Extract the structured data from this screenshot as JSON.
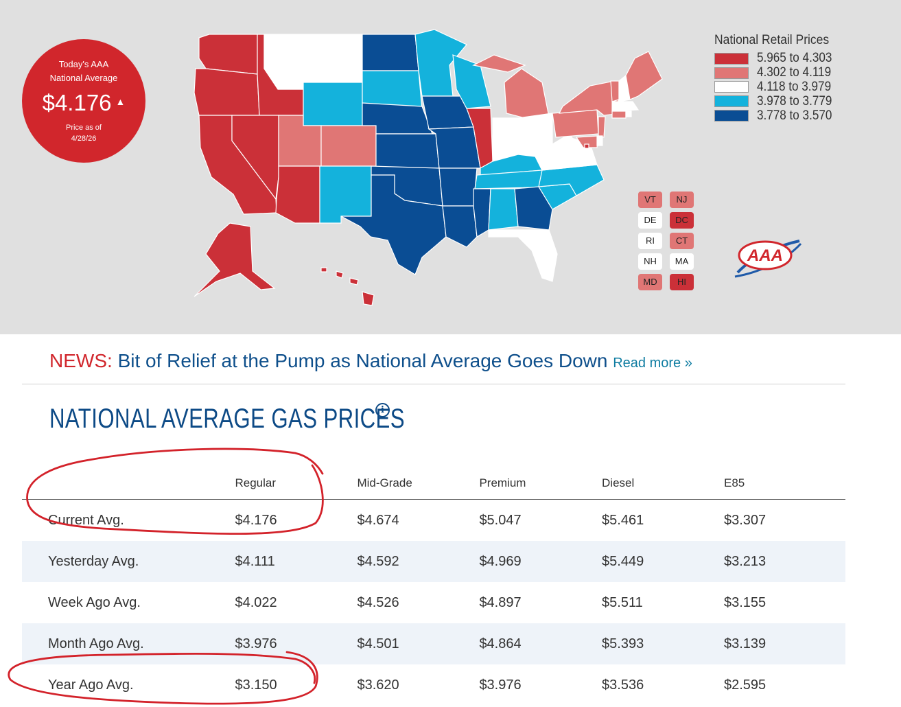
{
  "national_avg": {
    "label": "Today's AAA National Average",
    "price": "$4.176",
    "trend_icon": "up-triangle-icon",
    "date_label": "Price as of 4/28/26"
  },
  "legend": {
    "title": "National Retail Prices",
    "items": [
      {
        "range": "5.965 to 4.303",
        "color": "#cb3038"
      },
      {
        "range": "4.302 to 4.119",
        "color": "#e07675"
      },
      {
        "range": "4.118 to 3.979",
        "color": "#ffffff"
      },
      {
        "range": "3.978 to 3.779",
        "color": "#14b2dc"
      },
      {
        "range": "3.778 to 3.570",
        "color": "#0a4d94"
      }
    ]
  },
  "small_states": [
    {
      "abbr": "VT",
      "color": "#e07675"
    },
    {
      "abbr": "NJ",
      "color": "#e07675"
    },
    {
      "abbr": "DE",
      "color": "#ffffff"
    },
    {
      "abbr": "DC",
      "color": "#cb3038"
    },
    {
      "abbr": "RI",
      "color": "#ffffff"
    },
    {
      "abbr": "CT",
      "color": "#e07675"
    },
    {
      "abbr": "NH",
      "color": "#ffffff"
    },
    {
      "abbr": "MA",
      "color": "#ffffff"
    },
    {
      "abbr": "MD",
      "color": "#e07675"
    },
    {
      "abbr": "HI",
      "color": "#cb3038"
    }
  ],
  "logo": {
    "text": "AAA",
    "icon": "aaa-logo-icon"
  },
  "news": {
    "tag": "NEWS:",
    "headline": "Bit of Relief at the Pump as National Average Goes Down",
    "read_more": "Read more »"
  },
  "section": {
    "title": "NATIONAL AVERAGE GAS PRICES",
    "info_icon": "info-icon"
  },
  "table": {
    "headers": [
      "",
      "Regular",
      "Mid-Grade",
      "Premium",
      "Diesel",
      "E85"
    ],
    "rows": [
      {
        "label": "Current Avg.",
        "values": [
          "$4.176",
          "$4.674",
          "$5.047",
          "$5.461",
          "$3.307"
        ]
      },
      {
        "label": "Yesterday Avg.",
        "values": [
          "$4.111",
          "$4.592",
          "$4.969",
          "$5.449",
          "$3.213"
        ]
      },
      {
        "label": "Week Ago Avg.",
        "values": [
          "$4.022",
          "$4.526",
          "$4.897",
          "$5.511",
          "$3.155"
        ]
      },
      {
        "label": "Month Ago Avg.",
        "values": [
          "$3.976",
          "$4.501",
          "$4.864",
          "$5.393",
          "$3.139"
        ]
      },
      {
        "label": "Year Ago Avg.",
        "values": [
          "$3.150",
          "$3.620",
          "$3.976",
          "$3.536",
          "$2.595"
        ]
      }
    ]
  },
  "colors": {
    "accent_red": "#d1262c",
    "title_blue": "#0d4a86",
    "alt_row": "#eef3f9",
    "annotation": "#d3222a"
  }
}
